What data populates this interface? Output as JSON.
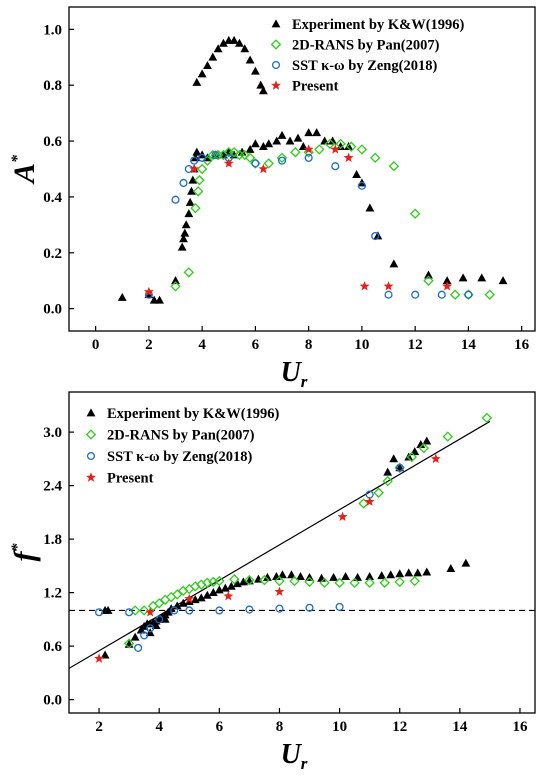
{
  "chart_data": [
    {
      "type": "scatter",
      "xlabel_main": "U",
      "xlabel_sub": "r",
      "ylabel_main": "A",
      "ylabel_sup": "*",
      "xlim": [
        -1,
        16.5
      ],
      "ylim": [
        -0.08,
        1.08
      ],
      "xticks": [
        0,
        2,
        4,
        6,
        8,
        10,
        12,
        14,
        16
      ],
      "yticks": [
        0.0,
        0.2,
        0.4,
        0.6,
        0.8,
        1.0
      ],
      "xtick_labels": [
        "0",
        "2",
        "4",
        "6",
        "8",
        "10",
        "12",
        "14",
        "16"
      ],
      "ytick_labels": [
        "0.0",
        "0.2",
        "0.4",
        "0.6",
        "0.8",
        "1.0"
      ],
      "legend_position": "top-right",
      "series": [
        {
          "name": "Experiment by K&W(1996)",
          "marker": "triangle",
          "color": "#000000",
          "points": [
            [
              1.0,
              0.04
            ],
            [
              2.0,
              0.05
            ],
            [
              2.2,
              0.03
            ],
            [
              2.4,
              0.03
            ],
            [
              3.0,
              0.1
            ],
            [
              3.25,
              0.22
            ],
            [
              3.3,
              0.25
            ],
            [
              3.35,
              0.27
            ],
            [
              3.4,
              0.3
            ],
            [
              3.5,
              0.34
            ],
            [
              3.55,
              0.38
            ],
            [
              3.6,
              0.42
            ],
            [
              3.65,
              0.46
            ],
            [
              3.7,
              0.5
            ],
            [
              3.75,
              0.54
            ],
            [
              3.8,
              0.56
            ],
            [
              4.0,
              0.55
            ],
            [
              4.2,
              0.54
            ],
            [
              4.5,
              0.55
            ],
            [
              4.8,
              0.55
            ],
            [
              5.0,
              0.56
            ],
            [
              5.2,
              0.55
            ],
            [
              5.5,
              0.56
            ],
            [
              5.8,
              0.57
            ],
            [
              6.0,
              0.59
            ],
            [
              6.3,
              0.58
            ],
            [
              6.5,
              0.59
            ],
            [
              6.8,
              0.6
            ],
            [
              7.0,
              0.62
            ],
            [
              7.3,
              0.6
            ],
            [
              7.6,
              0.61
            ],
            [
              7.8,
              0.58
            ],
            [
              8.0,
              0.63
            ],
            [
              8.3,
              0.63
            ],
            [
              8.6,
              0.6
            ],
            [
              8.9,
              0.6
            ],
            [
              9.2,
              0.58
            ],
            [
              9.5,
              0.58
            ],
            [
              9.8,
              0.48
            ],
            [
              10.0,
              0.45
            ],
            [
              10.3,
              0.36
            ],
            [
              10.6,
              0.26
            ],
            [
              11.2,
              0.16
            ],
            [
              12.5,
              0.12
            ],
            [
              13.2,
              0.1
            ],
            [
              13.8,
              0.11
            ],
            [
              14.5,
              0.11
            ],
            [
              15.3,
              0.1
            ],
            [
              3.8,
              0.81
            ],
            [
              4.0,
              0.84
            ],
            [
              4.2,
              0.87
            ],
            [
              4.4,
              0.9
            ],
            [
              4.6,
              0.93
            ],
            [
              4.8,
              0.95
            ],
            [
              5.0,
              0.96
            ],
            [
              5.2,
              0.96
            ],
            [
              5.4,
              0.95
            ],
            [
              5.6,
              0.93
            ],
            [
              5.8,
              0.89
            ],
            [
              6.0,
              0.85
            ],
            [
              6.2,
              0.8
            ],
            [
              6.3,
              0.78
            ]
          ]
        },
        {
          "name": "2D-RANS by Pan(2007)",
          "marker": "diamond",
          "color": "#2ecc1a",
          "points": [
            [
              3.0,
              0.08
            ],
            [
              3.5,
              0.13
            ],
            [
              3.75,
              0.36
            ],
            [
              3.85,
              0.42
            ],
            [
              3.9,
              0.46
            ],
            [
              4.0,
              0.5
            ],
            [
              4.2,
              0.53
            ],
            [
              4.4,
              0.55
            ],
            [
              4.6,
              0.55
            ],
            [
              4.8,
              0.55
            ],
            [
              5.0,
              0.56
            ],
            [
              5.2,
              0.56
            ],
            [
              5.4,
              0.55
            ],
            [
              5.6,
              0.55
            ],
            [
              5.8,
              0.54
            ],
            [
              6.0,
              0.52
            ],
            [
              6.5,
              0.52
            ],
            [
              7.0,
              0.54
            ],
            [
              7.5,
              0.56
            ],
            [
              8.0,
              0.56
            ],
            [
              8.4,
              0.57
            ],
            [
              8.8,
              0.59
            ],
            [
              9.2,
              0.59
            ],
            [
              9.6,
              0.58
            ],
            [
              10.0,
              0.57
            ],
            [
              10.5,
              0.54
            ],
            [
              11.2,
              0.51
            ],
            [
              12.0,
              0.34
            ],
            [
              12.5,
              0.1
            ],
            [
              13.5,
              0.05
            ],
            [
              14.0,
              0.05
            ],
            [
              14.8,
              0.05
            ]
          ]
        },
        {
          "name": "SST κ-ω by Zeng(2018)",
          "marker": "circle",
          "color": "#1a6cc6",
          "points": [
            [
              2.0,
              0.05
            ],
            [
              3.0,
              0.39
            ],
            [
              3.3,
              0.45
            ],
            [
              3.5,
              0.5
            ],
            [
              3.7,
              0.53
            ],
            [
              4.0,
              0.54
            ],
            [
              4.5,
              0.55
            ],
            [
              5.0,
              0.54
            ],
            [
              6.0,
              0.52
            ],
            [
              7.0,
              0.53
            ],
            [
              8.0,
              0.54
            ],
            [
              9.0,
              0.51
            ],
            [
              10.0,
              0.44
            ],
            [
              10.5,
              0.26
            ],
            [
              11.0,
              0.05
            ],
            [
              12.0,
              0.05
            ],
            [
              13.0,
              0.05
            ],
            [
              14.0,
              0.05
            ]
          ]
        },
        {
          "name": "Present",
          "marker": "star",
          "color": "#e8201a",
          "points": [
            [
              2.0,
              0.06
            ],
            [
              3.7,
              0.5
            ],
            [
              5.0,
              0.52
            ],
            [
              6.3,
              0.5
            ],
            [
              8.0,
              0.57
            ],
            [
              9.0,
              0.57
            ],
            [
              9.5,
              0.54
            ],
            [
              10.1,
              0.08
            ],
            [
              11.0,
              0.08
            ],
            [
              13.2,
              0.08
            ]
          ]
        }
      ]
    },
    {
      "type": "scatter",
      "xlabel_main": "U",
      "xlabel_sub": "r",
      "ylabel_main": "f",
      "ylabel_sup": "*",
      "xlim": [
        1.0,
        16.5
      ],
      "ylim": [
        -0.15,
        3.45
      ],
      "xticks": [
        2,
        4,
        6,
        8,
        10,
        12,
        14,
        16
      ],
      "yticks": [
        0.0,
        0.6,
        1.2,
        1.8,
        2.4,
        3.0
      ],
      "xtick_labels": [
        "2",
        "4",
        "6",
        "8",
        "10",
        "12",
        "14",
        "16"
      ],
      "ytick_labels": [
        "0.0",
        "0.6",
        "1.2",
        "1.8",
        "2.4",
        "3.0"
      ],
      "legend_position": "top-left",
      "reference_lines": [
        {
          "style": "dashed",
          "y": 1.0
        },
        {
          "style": "solid",
          "x1": 1.0,
          "y1": 0.35,
          "x2": 15.0,
          "y2": 3.12
        }
      ],
      "series": [
        {
          "name": "Experiment by K&W(1996)",
          "marker": "triangle",
          "color": "#000000",
          "points": [
            [
              2.2,
              0.5
            ],
            [
              2.2,
              1.0
            ],
            [
              2.3,
              1.0
            ],
            [
              3.0,
              0.62
            ],
            [
              3.2,
              0.7
            ],
            [
              3.4,
              0.78
            ],
            [
              3.5,
              0.82
            ],
            [
              3.6,
              0.85
            ],
            [
              3.7,
              0.85
            ],
            [
              3.8,
              0.86
            ],
            [
              3.9,
              0.88
            ],
            [
              4.0,
              0.9
            ],
            [
              4.1,
              0.92
            ],
            [
              4.2,
              0.95
            ],
            [
              4.3,
              0.98
            ],
            [
              4.4,
              1.02
            ],
            [
              4.6,
              1.05
            ],
            [
              4.8,
              1.08
            ],
            [
              5.0,
              1.1
            ],
            [
              5.2,
              1.12
            ],
            [
              5.4,
              1.14
            ],
            [
              5.6,
              1.17
            ],
            [
              5.8,
              1.2
            ],
            [
              6.0,
              1.23
            ],
            [
              6.2,
              1.25
            ],
            [
              6.4,
              1.27
            ],
            [
              6.6,
              1.3
            ],
            [
              6.8,
              1.32
            ],
            [
              7.0,
              1.33
            ],
            [
              7.3,
              1.35
            ],
            [
              7.6,
              1.37
            ],
            [
              7.9,
              1.38
            ],
            [
              8.1,
              1.4
            ],
            [
              8.4,
              1.4
            ],
            [
              8.7,
              1.38
            ],
            [
              9.0,
              1.37
            ],
            [
              9.4,
              1.36
            ],
            [
              9.8,
              1.37
            ],
            [
              10.2,
              1.38
            ],
            [
              10.6,
              1.37
            ],
            [
              11.0,
              1.38
            ],
            [
              11.4,
              1.39
            ],
            [
              11.7,
              1.4
            ],
            [
              12.0,
              1.41
            ],
            [
              12.3,
              1.42
            ],
            [
              12.6,
              1.42
            ],
            [
              12.9,
              1.43
            ],
            [
              13.7,
              1.47
            ],
            [
              14.2,
              1.53
            ],
            [
              11.6,
              2.55
            ],
            [
              11.8,
              2.7
            ],
            [
              12.0,
              2.6
            ],
            [
              12.3,
              2.72
            ],
            [
              12.5,
              2.78
            ],
            [
              12.7,
              2.86
            ],
            [
              12.9,
              2.9
            ],
            [
              3.7,
              0.75
            ],
            [
              3.9,
              0.83
            ],
            [
              4.2,
              0.9
            ]
          ]
        },
        {
          "name": "2D-RANS by Pan(2007)",
          "marker": "diamond",
          "color": "#2ecc1a",
          "points": [
            [
              3.0,
              0.63
            ],
            [
              3.2,
              1.0
            ],
            [
              3.5,
              1.0
            ],
            [
              3.8,
              1.05
            ],
            [
              4.0,
              1.08
            ],
            [
              4.2,
              1.12
            ],
            [
              4.4,
              1.15
            ],
            [
              4.6,
              1.18
            ],
            [
              4.8,
              1.22
            ],
            [
              5.0,
              1.24
            ],
            [
              5.2,
              1.27
            ],
            [
              5.4,
              1.29
            ],
            [
              5.6,
              1.31
            ],
            [
              5.8,
              1.32
            ],
            [
              6.0,
              1.33
            ],
            [
              6.5,
              1.35
            ],
            [
              7.0,
              1.34
            ],
            [
              7.5,
              1.34
            ],
            [
              8.0,
              1.33
            ],
            [
              8.5,
              1.33
            ],
            [
              9.0,
              1.32
            ],
            [
              9.5,
              1.31
            ],
            [
              10.0,
              1.31
            ],
            [
              10.5,
              1.31
            ],
            [
              11.0,
              1.31
            ],
            [
              11.5,
              1.31
            ],
            [
              12.0,
              1.32
            ],
            [
              12.5,
              1.33
            ],
            [
              10.8,
              2.2
            ],
            [
              11.3,
              2.32
            ],
            [
              11.6,
              2.45
            ],
            [
              12.0,
              2.6
            ],
            [
              12.4,
              2.72
            ],
            [
              12.8,
              2.82
            ],
            [
              13.6,
              2.95
            ],
            [
              14.9,
              3.16
            ]
          ]
        },
        {
          "name": "SST κ-ω by Zeng(2018)",
          "marker": "circle",
          "color": "#1a6cc6",
          "points": [
            [
              2.0,
              0.98
            ],
            [
              3.0,
              0.98
            ],
            [
              3.3,
              0.58
            ],
            [
              3.5,
              0.72
            ],
            [
              3.7,
              0.8
            ],
            [
              4.0,
              0.9
            ],
            [
              4.5,
              1.0
            ],
            [
              5.0,
              1.0
            ],
            [
              6.0,
              1.0
            ],
            [
              7.0,
              1.01
            ],
            [
              8.0,
              1.02
            ],
            [
              9.0,
              1.03
            ],
            [
              10.0,
              1.04
            ],
            [
              11.0,
              2.3
            ],
            [
              12.0,
              2.6
            ]
          ]
        },
        {
          "name": "Present",
          "marker": "star",
          "color": "#e8201a",
          "points": [
            [
              2.0,
              0.46
            ],
            [
              3.7,
              0.98
            ],
            [
              5.0,
              1.13
            ],
            [
              6.3,
              1.16
            ],
            [
              8.0,
              1.21
            ],
            [
              10.1,
              2.05
            ],
            [
              11.0,
              2.22
            ],
            [
              13.2,
              2.7
            ]
          ]
        }
      ]
    }
  ]
}
